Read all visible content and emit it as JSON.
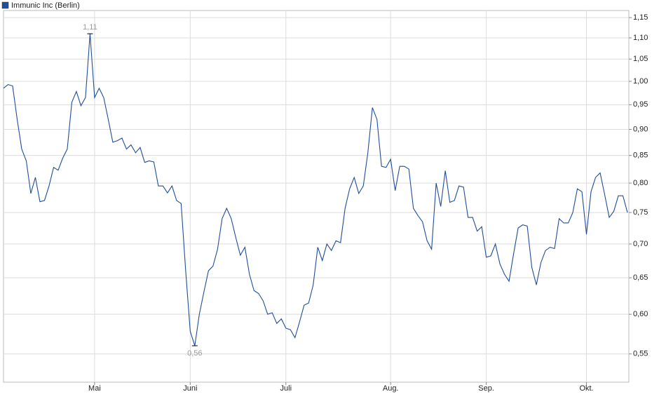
{
  "chart_data": {
    "type": "line",
    "legend": "Immunic Inc (Berlin)",
    "x": [
      0,
      1,
      2,
      3,
      4,
      5,
      6,
      7,
      8,
      9,
      10,
      11,
      12,
      13,
      14,
      15,
      16,
      17,
      18,
      19,
      20,
      21,
      22,
      23,
      24,
      25,
      26,
      27,
      28,
      29,
      30,
      31,
      32,
      33,
      34,
      35,
      36,
      37,
      38,
      39,
      40,
      41,
      42,
      43,
      44,
      45,
      46,
      47,
      48,
      49,
      50,
      51,
      52,
      53,
      54,
      55,
      56,
      57,
      58,
      59,
      60,
      61,
      62,
      63,
      64,
      65,
      66,
      67,
      68,
      69,
      70,
      71,
      72,
      73,
      74,
      75,
      76,
      77,
      78,
      79,
      80,
      81,
      82,
      83,
      84,
      85,
      86,
      87,
      88,
      89,
      90,
      91,
      92,
      93,
      94,
      95,
      96,
      97,
      98,
      99,
      100,
      101,
      102,
      103,
      104,
      105,
      106,
      107,
      108,
      109,
      110,
      111,
      112,
      113,
      114,
      115,
      116,
      117,
      118,
      119,
      120,
      121,
      122,
      123,
      124,
      125,
      126,
      127,
      128,
      129,
      130,
      131,
      132,
      133,
      134,
      135,
      136,
      137
    ],
    "series": [
      {
        "name": "Immunic Inc (Berlin)",
        "color": "#1f4e9c",
        "values": [
          0.985,
          0.993,
          0.99,
          0.92,
          0.862,
          0.84,
          0.782,
          0.81,
          0.768,
          0.77,
          0.795,
          0.828,
          0.823,
          0.845,
          0.862,
          0.955,
          0.978,
          0.948,
          0.965,
          1.11,
          0.965,
          0.985,
          0.965,
          0.92,
          0.875,
          0.878,
          0.883,
          0.862,
          0.87,
          0.855,
          0.865,
          0.837,
          0.84,
          0.838,
          0.795,
          0.795,
          0.783,
          0.795,
          0.77,
          0.765,
          0.66,
          0.578,
          0.56,
          0.6,
          0.63,
          0.66,
          0.667,
          0.692,
          0.74,
          0.757,
          0.74,
          0.71,
          0.683,
          0.695,
          0.655,
          0.632,
          0.628,
          0.618,
          0.6,
          0.602,
          0.588,
          0.594,
          0.582,
          0.58,
          0.57,
          0.59,
          0.612,
          0.615,
          0.64,
          0.695,
          0.675,
          0.7,
          0.69,
          0.705,
          0.702,
          0.757,
          0.79,
          0.81,
          0.782,
          0.795,
          0.855,
          0.944,
          0.92,
          0.83,
          0.828,
          0.843,
          0.787,
          0.83,
          0.83,
          0.825,
          0.757,
          0.745,
          0.735,
          0.705,
          0.692,
          0.8,
          0.76,
          0.822,
          0.767,
          0.77,
          0.795,
          0.793,
          0.742,
          0.742,
          0.72,
          0.727,
          0.68,
          0.682,
          0.7,
          0.67,
          0.655,
          0.645,
          0.685,
          0.725,
          0.73,
          0.728,
          0.665,
          0.64,
          0.672,
          0.69,
          0.695,
          0.693,
          0.74,
          0.733,
          0.733,
          0.75,
          0.79,
          0.785,
          0.715,
          0.785,
          0.81,
          0.818,
          0.78,
          0.742,
          0.752,
          0.778,
          0.778,
          0.75
        ]
      }
    ],
    "xlim": [
      0,
      137
    ],
    "xticks": [
      {
        "value": 20,
        "label": "Mai"
      },
      {
        "value": 41,
        "label": "Juni"
      },
      {
        "value": 62,
        "label": "Juli"
      },
      {
        "value": 85,
        "label": "Aug."
      },
      {
        "value": 106,
        "label": "Sep."
      },
      {
        "value": 128,
        "label": "Okt."
      }
    ],
    "ylim": [
      0.517,
      1.168
    ],
    "log_y": true,
    "yticks": [
      {
        "value": 0.55,
        "label": "0,55"
      },
      {
        "value": 0.6,
        "label": "0,60"
      },
      {
        "value": 0.65,
        "label": "0,65"
      },
      {
        "value": 0.7,
        "label": "0,70"
      },
      {
        "value": 0.75,
        "label": "0,75"
      },
      {
        "value": 0.8,
        "label": "0,80"
      },
      {
        "value": 0.85,
        "label": "0,85"
      },
      {
        "value": 0.9,
        "label": "0,90"
      },
      {
        "value": 0.95,
        "label": "0,95"
      },
      {
        "value": 1.0,
        "label": "1,00"
      },
      {
        "value": 1.05,
        "label": "1,05"
      },
      {
        "value": 1.1,
        "label": "1,10"
      },
      {
        "value": 1.15,
        "label": "1,15"
      }
    ],
    "grid": true,
    "annotations": [
      {
        "x": 19,
        "value": 1.11,
        "label": "1,11"
      },
      {
        "x": 42,
        "value": 0.56,
        "label": "0,56"
      }
    ]
  }
}
